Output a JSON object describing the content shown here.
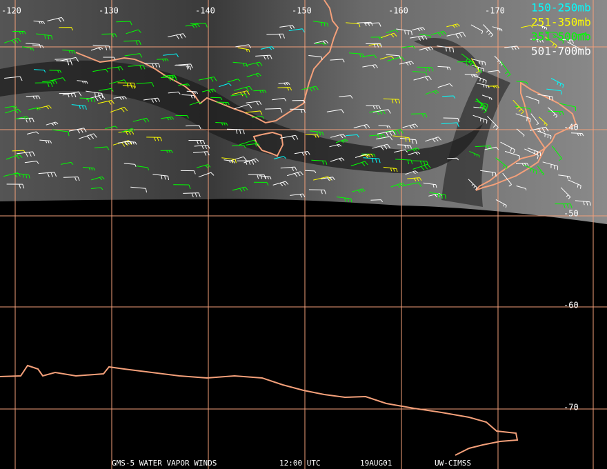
{
  "legend": [
    {
      "label": "150-250mb",
      "color": "#00ffff"
    },
    {
      "label": "251-350mb",
      "color": "#ffff00"
    },
    {
      "label": "351-500mb",
      "color": "#00ff00"
    },
    {
      "label": "501-700mb",
      "color": "#ffffff"
    }
  ],
  "grid": {
    "longitude_labels": [
      "-120",
      "-130",
      "-140",
      "-150",
      "-160",
      "-170"
    ],
    "latitude_labels": [
      "-40",
      "-50",
      "-60",
      "-70"
    ]
  },
  "footer": [
    "GMS-5 WATER VAPOR WINDS",
    "12:00 UTC",
    "19AUG01",
    "UW-CIMSS"
  ]
}
